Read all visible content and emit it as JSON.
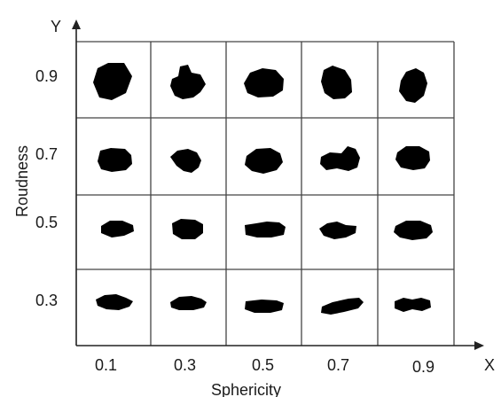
{
  "diagram": {
    "x_axis": {
      "letter": "X",
      "name": "Sphericity",
      "ticks": [
        "0.1",
        "0.3",
        "0.5",
        "0.7",
        "0.9"
      ]
    },
    "y_axis": {
      "letter": "Y",
      "name": "Roudness",
      "ticks": [
        "0.9",
        "0.7",
        "0.5",
        "0.3"
      ]
    },
    "grid_rows": 4,
    "grid_cols": 5,
    "particle_color": "#000000",
    "line_color": "#333333"
  }
}
